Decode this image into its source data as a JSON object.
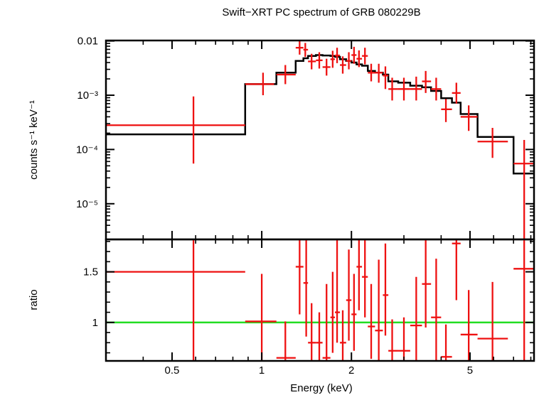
{
  "chart_data": {
    "type": "scatter",
    "title": "Swift−XRT PC spectrum of GRB 080229B",
    "xlabel": "Energy (keV)",
    "x_scale": "log",
    "xlim": [
      0.3,
      8.2
    ],
    "x_ticks": [
      {
        "value": 0.5,
        "label": "0.5"
      },
      {
        "value": 1,
        "label": "1"
      },
      {
        "value": 2,
        "label": "2"
      },
      {
        "value": 5,
        "label": "5"
      }
    ],
    "panels": [
      {
        "name": "spectrum",
        "ylabel": "counts s⁻¹ keV⁻¹",
        "y_scale": "log",
        "ylim": [
          2.2e-06,
          0.0102
        ],
        "y_ticks": [
          {
            "value": 0.01,
            "label": "0.01"
          },
          {
            "value": 0.001,
            "label": "10⁻³"
          },
          {
            "value": 0.0001,
            "label": "10⁻⁴"
          },
          {
            "value": 1e-05,
            "label": "10⁻⁵"
          }
        ],
        "data": [
          {
            "x": 0.59,
            "x_lo": 0.3,
            "x_hi": 0.88,
            "y": 0.00028,
            "y_lo": 5.5e-05,
            "y_hi": 0.00095
          },
          {
            "x": 1.01,
            "x_lo": 0.88,
            "x_hi": 1.1,
            "y": 0.0016,
            "y_lo": 0.001,
            "y_hi": 0.0026
          },
          {
            "x": 1.2,
            "x_lo": 1.12,
            "x_hi": 1.3,
            "y": 0.0024,
            "y_lo": 0.0016,
            "y_hi": 0.0036
          },
          {
            "x": 1.34,
            "x_lo": 1.3,
            "x_hi": 1.38,
            "y": 0.0075,
            "y_lo": 0.0056,
            "y_hi": 0.0099
          },
          {
            "x": 1.4,
            "x_lo": 1.38,
            "x_hi": 1.43,
            "y": 0.0069,
            "y_lo": 0.0051,
            "y_hi": 0.0092
          },
          {
            "x": 1.47,
            "x_lo": 1.43,
            "x_hi": 1.52,
            "y": 0.0042,
            "y_lo": 0.003,
            "y_hi": 0.0058
          },
          {
            "x": 1.56,
            "x_lo": 1.52,
            "x_hi": 1.6,
            "y": 0.0044,
            "y_lo": 0.0031,
            "y_hi": 0.0062
          },
          {
            "x": 1.65,
            "x_lo": 1.6,
            "x_hi": 1.7,
            "y": 0.0033,
            "y_lo": 0.0023,
            "y_hi": 0.0047
          },
          {
            "x": 1.73,
            "x_lo": 1.7,
            "x_hi": 1.76,
            "y": 0.0046,
            "y_lo": 0.0032,
            "y_hi": 0.0066
          },
          {
            "x": 1.79,
            "x_lo": 1.76,
            "x_hi": 1.83,
            "y": 0.0054,
            "y_lo": 0.0039,
            "y_hi": 0.0075
          },
          {
            "x": 1.87,
            "x_lo": 1.83,
            "x_hi": 1.92,
            "y": 0.0036,
            "y_lo": 0.0025,
            "y_hi": 0.0052
          },
          {
            "x": 1.96,
            "x_lo": 1.92,
            "x_hi": 2.0,
            "y": 0.0043,
            "y_lo": 0.003,
            "y_hi": 0.0062
          },
          {
            "x": 2.04,
            "x_lo": 2.0,
            "x_hi": 2.08,
            "y": 0.0055,
            "y_lo": 0.0038,
            "y_hi": 0.0078
          },
          {
            "x": 2.12,
            "x_lo": 2.08,
            "x_hi": 2.17,
            "y": 0.0047,
            "y_lo": 0.0033,
            "y_hi": 0.0067
          },
          {
            "x": 2.22,
            "x_lo": 2.17,
            "x_hi": 2.27,
            "y": 0.0053,
            "y_lo": 0.0037,
            "y_hi": 0.0075
          },
          {
            "x": 2.33,
            "x_lo": 2.27,
            "x_hi": 2.4,
            "y": 0.0026,
            "y_lo": 0.0018,
            "y_hi": 0.0038
          },
          {
            "x": 2.47,
            "x_lo": 2.4,
            "x_hi": 2.55,
            "y": 0.0026,
            "y_lo": 0.0017,
            "y_hi": 0.0038
          },
          {
            "x": 2.6,
            "x_lo": 2.55,
            "x_hi": 2.66,
            "y": 0.0023,
            "y_lo": 0.0013,
            "y_hi": 0.0034
          },
          {
            "x": 2.74,
            "x_lo": 2.66,
            "x_hi": 2.87,
            "y": 0.0013,
            "y_lo": 0.0008,
            "y_hi": 0.0021
          },
          {
            "x": 3.0,
            "x_lo": 2.87,
            "x_hi": 3.15,
            "y": 0.0013,
            "y_lo": 0.0008,
            "y_hi": 0.0021
          },
          {
            "x": 3.3,
            "x_lo": 3.15,
            "x_hi": 3.45,
            "y": 0.0013,
            "y_lo": 0.0008,
            "y_hi": 0.0022
          },
          {
            "x": 3.55,
            "x_lo": 3.45,
            "x_hi": 3.7,
            "y": 0.0018,
            "y_lo": 0.0011,
            "y_hi": 0.0028
          },
          {
            "x": 3.85,
            "x_lo": 3.7,
            "x_hi": 4.0,
            "y": 0.0013,
            "y_lo": 0.0008,
            "y_hi": 0.0021
          },
          {
            "x": 4.15,
            "x_lo": 4.0,
            "x_hi": 4.35,
            "y": 0.00055,
            "y_lo": 0.00032,
            "y_hi": 0.00085
          },
          {
            "x": 4.5,
            "x_lo": 4.35,
            "x_hi": 4.65,
            "y": 0.0011,
            "y_lo": 0.0007,
            "y_hi": 0.0017
          },
          {
            "x": 4.95,
            "x_lo": 4.65,
            "x_hi": 5.3,
            "y": 0.0004,
            "y_lo": 0.00022,
            "y_hi": 0.00065
          },
          {
            "x": 5.95,
            "x_lo": 5.3,
            "x_hi": 6.7,
            "y": 0.00014,
            "y_lo": 7e-05,
            "y_hi": 0.00025
          },
          {
            "x": 7.6,
            "x_lo": 7.0,
            "x_hi": 8.2,
            "y": 5.5e-05,
            "y_lo": 2e-06,
            "y_hi": 0.00015
          }
        ],
        "model_step": [
          {
            "x0": 0.3,
            "x1": 0.88,
            "y": 0.00019
          },
          {
            "x0": 0.88,
            "x1": 1.12,
            "y": 0.0016
          },
          {
            "x0": 1.12,
            "x1": 1.3,
            "y": 0.0026
          },
          {
            "x0": 1.3,
            "x1": 1.38,
            "y": 0.0043
          },
          {
            "x0": 1.38,
            "x1": 1.43,
            "y": 0.0048
          },
          {
            "x0": 1.43,
            "x1": 1.52,
            "y": 0.0053
          },
          {
            "x0": 1.52,
            "x1": 1.6,
            "y": 0.0055
          },
          {
            "x0": 1.6,
            "x1": 1.7,
            "y": 0.0054
          },
          {
            "x0": 1.7,
            "x1": 1.76,
            "y": 0.0053
          },
          {
            "x0": 1.76,
            "x1": 1.83,
            "y": 0.0051
          },
          {
            "x0": 1.83,
            "x1": 1.92,
            "y": 0.0046
          },
          {
            "x0": 1.92,
            "x1": 2.0,
            "y": 0.0043
          },
          {
            "x0": 2.0,
            "x1": 2.08,
            "y": 0.004
          },
          {
            "x0": 2.08,
            "x1": 2.17,
            "y": 0.0037
          },
          {
            "x0": 2.17,
            "x1": 2.27,
            "y": 0.0035
          },
          {
            "x0": 2.27,
            "x1": 2.4,
            "y": 0.0028
          },
          {
            "x0": 2.4,
            "x1": 2.55,
            "y": 0.0026
          },
          {
            "x0": 2.55,
            "x1": 2.66,
            "y": 0.0024
          },
          {
            "x0": 2.66,
            "x1": 2.87,
            "y": 0.0018
          },
          {
            "x0": 2.87,
            "x1": 3.15,
            "y": 0.0017
          },
          {
            "x0": 3.15,
            "x1": 3.45,
            "y": 0.0015
          },
          {
            "x0": 3.45,
            "x1": 3.7,
            "y": 0.0014
          },
          {
            "x0": 3.7,
            "x1": 4.0,
            "y": 0.0012
          },
          {
            "x0": 4.0,
            "x1": 4.35,
            "y": 0.00088
          },
          {
            "x0": 4.35,
            "x1": 4.65,
            "y": 0.00073
          },
          {
            "x0": 4.65,
            "x1": 5.3,
            "y": 0.00045
          },
          {
            "x0": 5.3,
            "x1": 7.0,
            "y": 0.00017
          },
          {
            "x0": 7.0,
            "x1": 8.2,
            "y": 3.6e-05
          }
        ]
      },
      {
        "name": "ratio",
        "ylabel": "ratio",
        "y_scale": "linear",
        "ylim": [
          0.62,
          1.82
        ],
        "y_ticks": [
          {
            "value": 1,
            "label": "1"
          },
          {
            "value": 1.5,
            "label": "1.5"
          }
        ],
        "reference_line": {
          "y": 1.0,
          "color": "#22dd22"
        },
        "data": [
          {
            "x": 0.59,
            "x_lo": 0.3,
            "x_hi": 0.88,
            "y": 1.5,
            "y_lo": 0.62,
            "y_hi": 1.82
          },
          {
            "x": 1.0,
            "x_lo": 0.88,
            "x_hi": 1.12,
            "y": 1.01,
            "y_lo": 0.62,
            "y_hi": 1.48
          },
          {
            "x": 1.2,
            "x_lo": 1.12,
            "x_hi": 1.3,
            "y": 0.65,
            "y_lo": 0.62,
            "y_hi": 1.01
          },
          {
            "x": 1.34,
            "x_lo": 1.3,
            "x_hi": 1.38,
            "y": 1.55,
            "y_lo": 1.08,
            "y_hi": 1.82
          },
          {
            "x": 1.41,
            "x_lo": 1.38,
            "x_hi": 1.43,
            "y": 1.39,
            "y_lo": 0.86,
            "y_hi": 1.82
          },
          {
            "x": 1.47,
            "x_lo": 1.43,
            "x_hi": 1.52,
            "y": 0.8,
            "y_lo": 0.62,
            "y_hi": 1.19
          },
          {
            "x": 1.56,
            "x_lo": 1.52,
            "x_hi": 1.6,
            "y": 0.8,
            "y_lo": 0.62,
            "y_hi": 1.1
          },
          {
            "x": 1.65,
            "x_lo": 1.6,
            "x_hi": 1.7,
            "y": 0.65,
            "y_lo": 0.62,
            "y_hi": 1.38
          },
          {
            "x": 1.73,
            "x_lo": 1.7,
            "x_hi": 1.76,
            "y": 1.05,
            "y_lo": 0.7,
            "y_hi": 1.5
          },
          {
            "x": 1.79,
            "x_lo": 1.76,
            "x_hi": 1.83,
            "y": 1.1,
            "y_lo": 0.8,
            "y_hi": 1.82
          },
          {
            "x": 1.87,
            "x_lo": 1.83,
            "x_hi": 1.92,
            "y": 0.8,
            "y_lo": 0.62,
            "y_hi": 1.12
          },
          {
            "x": 1.96,
            "x_lo": 1.92,
            "x_hi": 2.0,
            "y": 1.22,
            "y_lo": 0.82,
            "y_hi": 1.72
          },
          {
            "x": 2.04,
            "x_lo": 2.0,
            "x_hi": 2.08,
            "y": 1.08,
            "y_lo": 0.72,
            "y_hi": 1.48
          },
          {
            "x": 2.12,
            "x_lo": 2.08,
            "x_hi": 2.17,
            "y": 1.55,
            "y_lo": 1.12,
            "y_hi": 1.82
          },
          {
            "x": 2.22,
            "x_lo": 2.17,
            "x_hi": 2.27,
            "y": 1.45,
            "y_lo": 1.05,
            "y_hi": 1.82
          },
          {
            "x": 2.33,
            "x_lo": 2.27,
            "x_hi": 2.4,
            "y": 0.96,
            "y_lo": 0.64,
            "y_hi": 1.38
          },
          {
            "x": 2.47,
            "x_lo": 2.4,
            "x_hi": 2.55,
            "y": 0.92,
            "y_lo": 0.62,
            "y_hi": 1.62
          },
          {
            "x": 2.6,
            "x_lo": 2.55,
            "x_hi": 2.66,
            "y": 1.27,
            "y_lo": 0.87,
            "y_hi": 1.78
          },
          {
            "x": 2.74,
            "x_lo": 2.66,
            "x_hi": 2.87,
            "y": 0.72,
            "y_lo": 0.62,
            "y_hi": 1.03
          },
          {
            "x": 3.0,
            "x_lo": 2.87,
            "x_hi": 3.15,
            "y": 0.72,
            "y_lo": 0.62,
            "y_hi": 1.05
          },
          {
            "x": 3.3,
            "x_lo": 3.15,
            "x_hi": 3.45,
            "y": 0.97,
            "y_lo": 0.62,
            "y_hi": 1.45
          },
          {
            "x": 3.55,
            "x_lo": 3.45,
            "x_hi": 3.7,
            "y": 1.38,
            "y_lo": 0.95,
            "y_hi": 1.82
          },
          {
            "x": 3.85,
            "x_lo": 3.7,
            "x_hi": 4.0,
            "y": 1.05,
            "y_lo": 0.62,
            "y_hi": 1.63
          },
          {
            "x": 4.15,
            "x_lo": 4.0,
            "x_hi": 4.35,
            "y": 0.66,
            "y_lo": 0.62,
            "y_hi": 0.98
          },
          {
            "x": 4.5,
            "x_lo": 4.35,
            "x_hi": 4.65,
            "y": 1.78,
            "y_lo": 1.22,
            "y_hi": 1.82
          },
          {
            "x": 4.95,
            "x_lo": 4.65,
            "x_hi": 5.3,
            "y": 0.88,
            "y_lo": 0.62,
            "y_hi": 1.32
          },
          {
            "x": 5.95,
            "x_lo": 5.3,
            "x_hi": 6.7,
            "y": 0.84,
            "y_lo": 0.62,
            "y_hi": 1.4
          },
          {
            "x": 7.6,
            "x_lo": 7.0,
            "x_hi": 8.2,
            "y": 1.53,
            "y_lo": 0.62,
            "y_hi": 1.82
          }
        ]
      }
    ],
    "colors": {
      "data": "#ee1111",
      "model": "#000000",
      "reference": "#22dd22"
    },
    "grid": false,
    "legend": "none"
  }
}
